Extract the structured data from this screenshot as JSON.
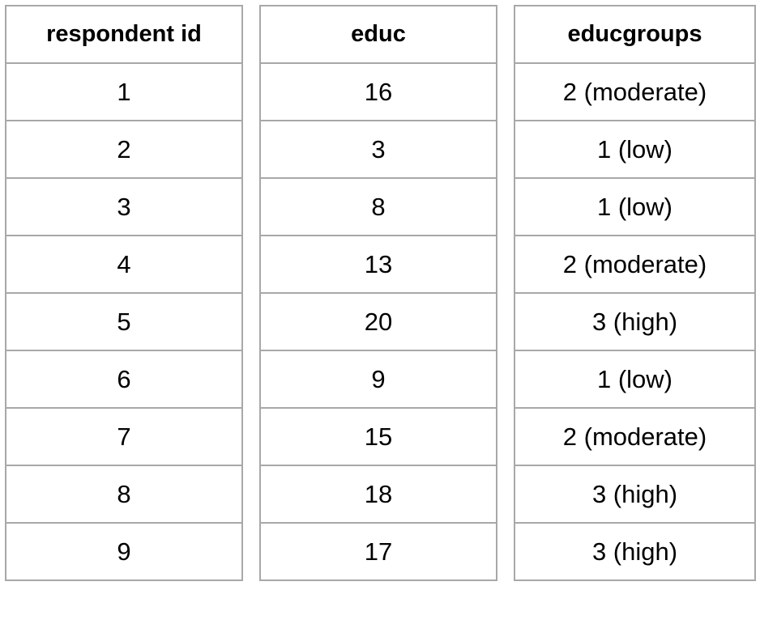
{
  "columns": [
    {
      "header": "respondent id",
      "cells": [
        "1",
        "2",
        "3",
        "4",
        "5",
        "6",
        "7",
        "8",
        "9"
      ]
    },
    {
      "header": "educ",
      "cells": [
        "16",
        "3",
        "8",
        "13",
        "20",
        "9",
        "15",
        "18",
        "17"
      ]
    },
    {
      "header": "educgroups",
      "cells": [
        "2 (moderate)",
        "1 (low)",
        "1 (low)",
        "2 (moderate)",
        "3 (high)",
        "1 (low)",
        "2 (moderate)",
        "3 (high)",
        "3 (high)"
      ]
    }
  ],
  "colors": {
    "border": "#a8a8a8",
    "text": "#000000",
    "background": "#ffffff"
  }
}
